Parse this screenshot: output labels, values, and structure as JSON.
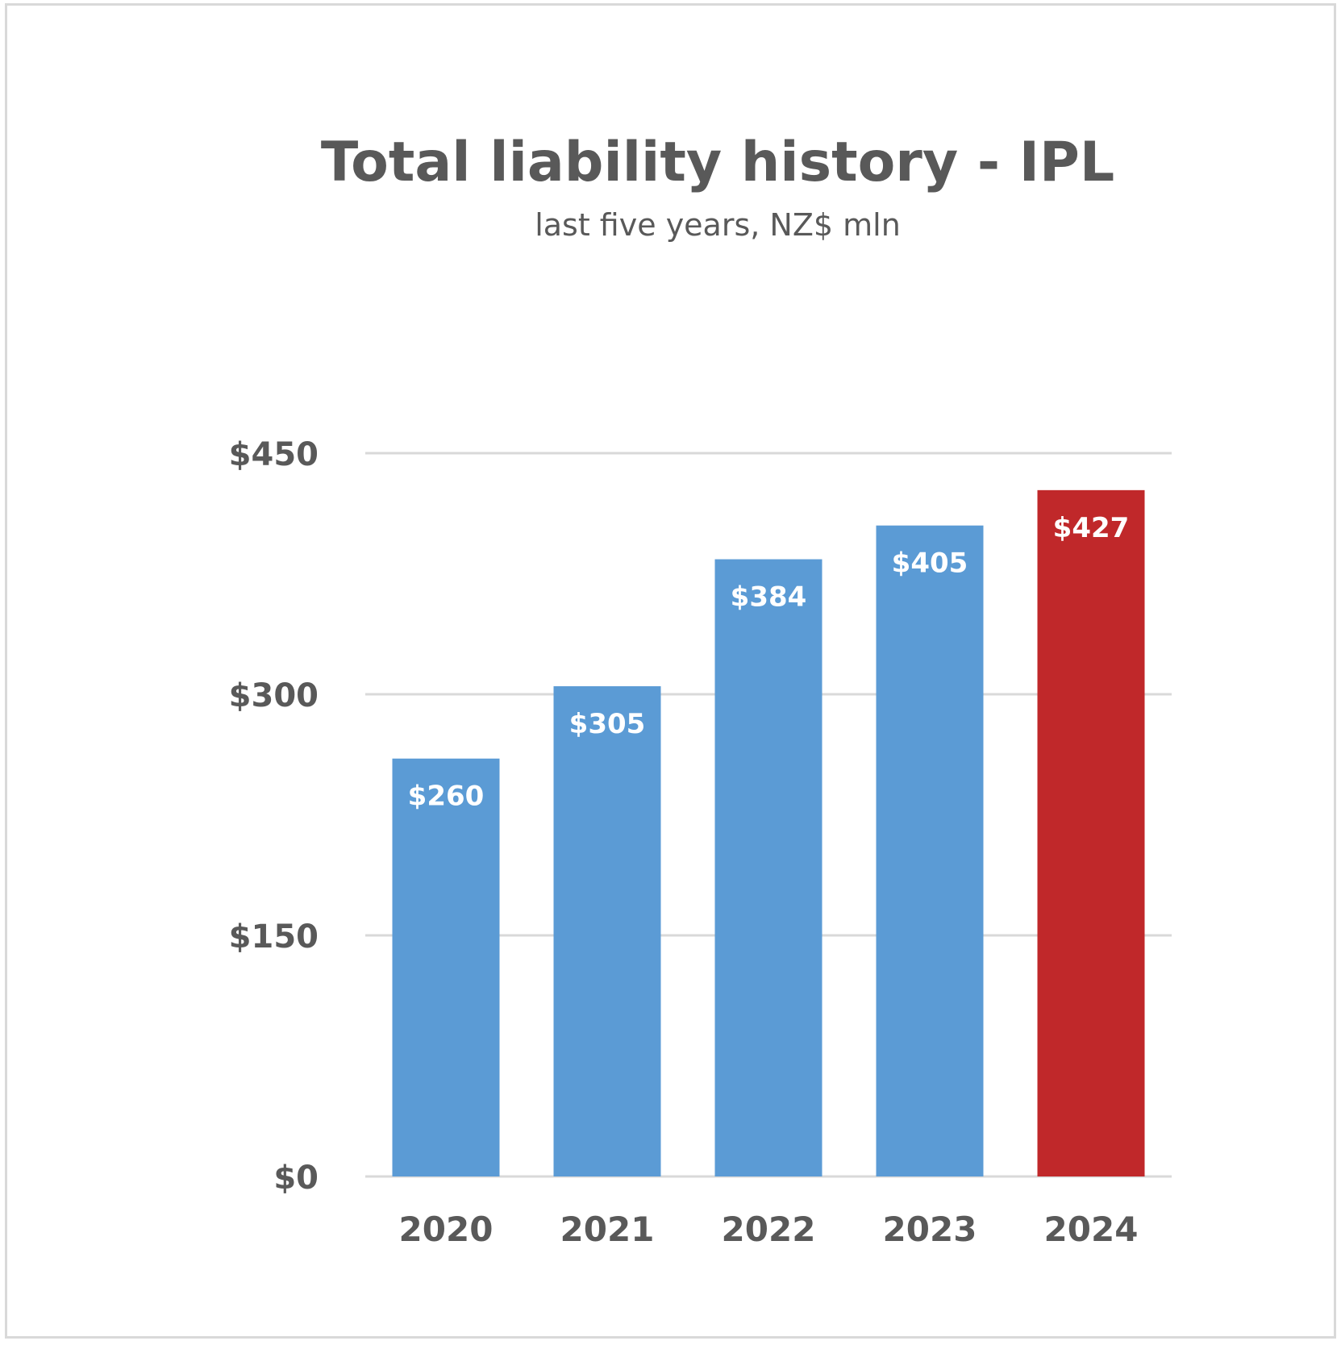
{
  "chart_data": {
    "type": "bar",
    "title": "Total liability history - IPL",
    "subtitle": "last five years, NZ$ mln",
    "categories": [
      "2020",
      "2021",
      "2022",
      "2023",
      "2024"
    ],
    "values": [
      260,
      305,
      384,
      405,
      427
    ],
    "data_labels": [
      "$260",
      "$305",
      "$384",
      "$405",
      "$427"
    ],
    "ylim": [
      0,
      450
    ],
    "yticks": [
      0,
      150,
      300,
      450
    ],
    "ytick_labels": [
      "$0",
      "$150",
      "$300",
      "$450"
    ],
    "grid": true,
    "legend": "none",
    "colors": {
      "default_bar": "#5b9bd5",
      "highlight_bar": "#c0282a",
      "highlight_category": "2024",
      "text": "#595959",
      "gridline": "#d9d9d9"
    }
  }
}
